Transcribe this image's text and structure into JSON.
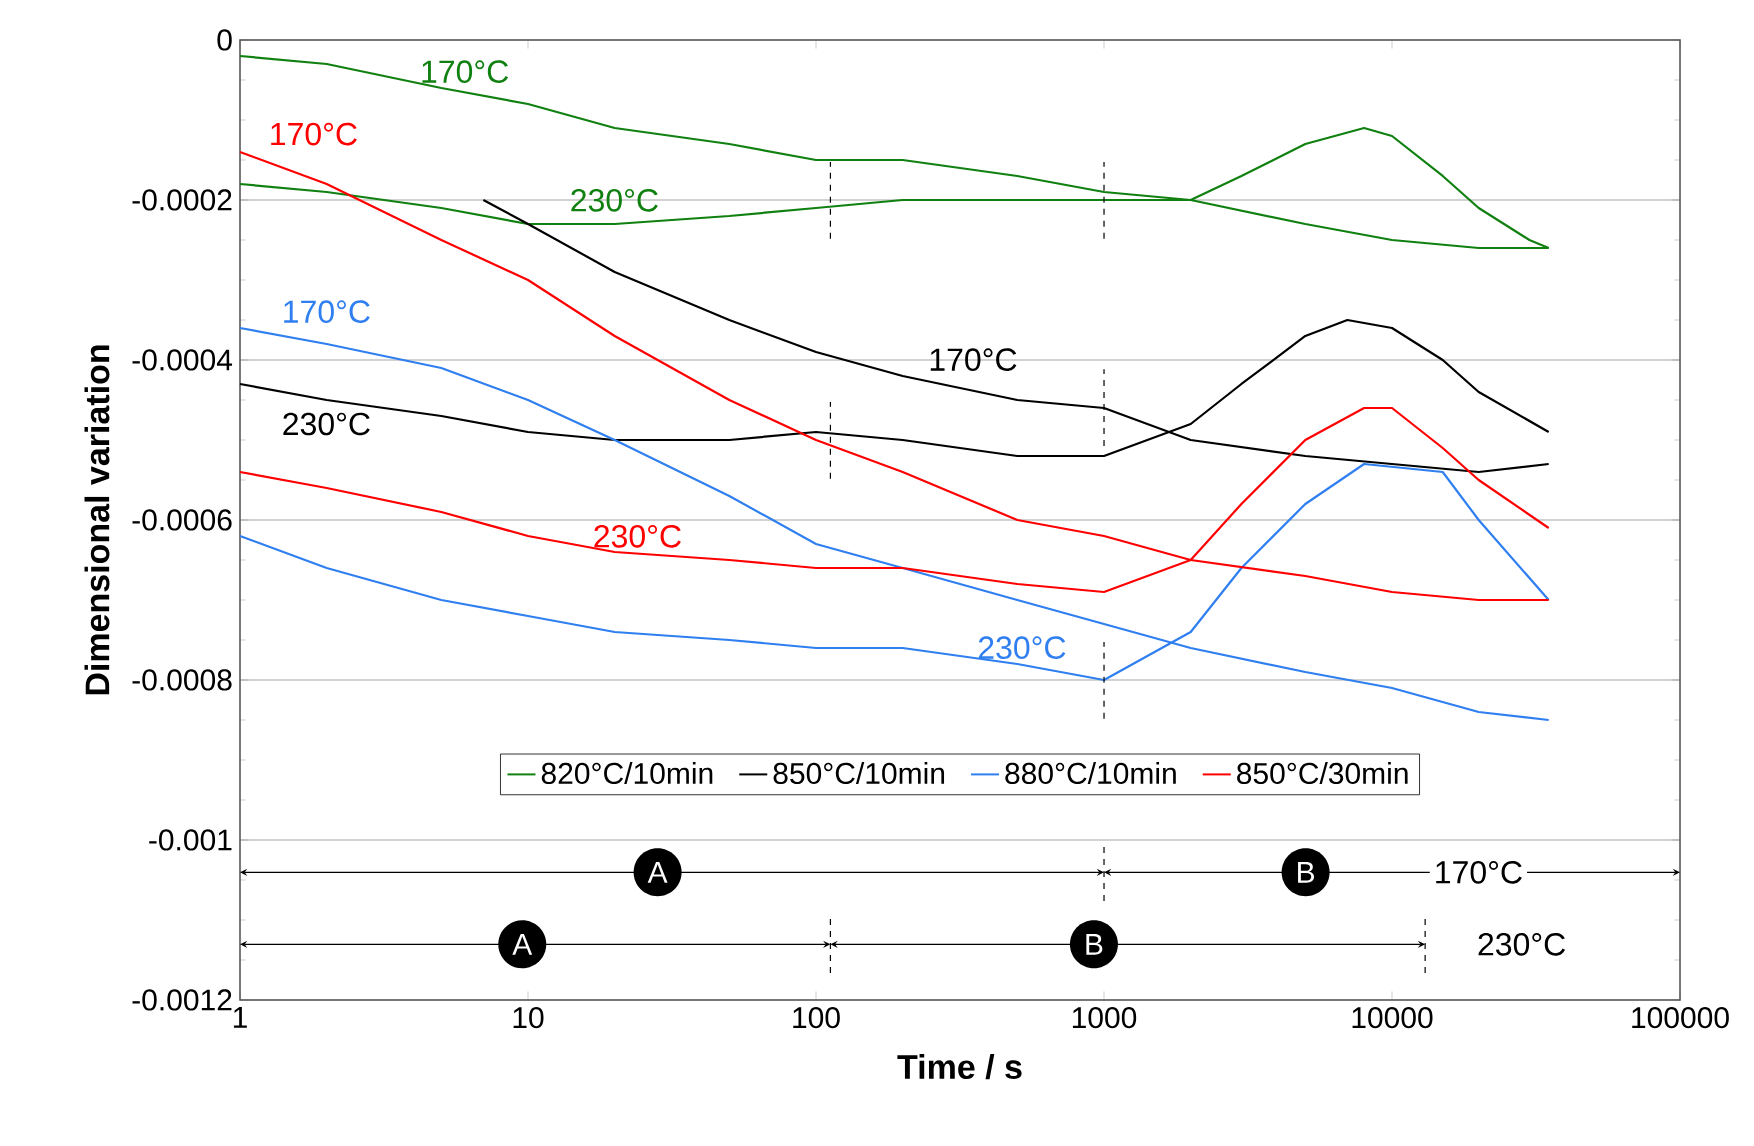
{
  "chart_data": {
    "type": "line",
    "xlabel": "Time / s",
    "ylabel": "Dimensional variation",
    "log": "x",
    "xlim": [
      1,
      100000
    ],
    "ylim": [
      -0.0012,
      0
    ],
    "xticks": [
      1,
      10,
      100,
      1000,
      10000,
      100000
    ],
    "yticks": [
      0,
      -0.0002,
      -0.0004,
      -0.0006,
      -0.0008,
      -0.001,
      -0.0012
    ],
    "grid": "y",
    "legend": "bottom",
    "series": [
      {
        "name": "820°C/10min",
        "color": "#108010",
        "x": [
          1,
          2,
          5,
          10,
          20,
          50,
          100,
          200,
          500,
          1000,
          2000,
          5000,
          10000,
          20000,
          35000
        ],
        "values": [
          -2e-05,
          -3e-05,
          -6e-05,
          -8e-05,
          -0.00011,
          -0.00013,
          -0.00015,
          -0.00015,
          -0.00017,
          -0.00019,
          -0.0002,
          -0.00023,
          -0.00025,
          -0.00026,
          -0.00026
        ]
      },
      {
        "color": "#108010",
        "x": [
          1,
          2,
          5,
          10,
          20,
          50,
          100,
          200,
          500,
          1000,
          2000,
          3000,
          5000,
          8000,
          10000,
          15000,
          20000,
          30000,
          35000
        ],
        "values": [
          -0.00018,
          -0.00019,
          -0.00021,
          -0.00023,
          -0.00023,
          -0.00022,
          -0.00021,
          -0.0002,
          -0.0002,
          -0.0002,
          -0.0002,
          -0.00017,
          -0.00013,
          -0.00011,
          -0.00012,
          -0.00017,
          -0.00021,
          -0.00025,
          -0.00026
        ]
      },
      {
        "name": "850°C/10min",
        "color": "#000000",
        "x": [
          7,
          10,
          20,
          50,
          100,
          200,
          500,
          1000,
          2000,
          5000,
          10000,
          20000,
          35000
        ],
        "values": [
          -0.0002,
          -0.00023,
          -0.00029,
          -0.00035,
          -0.00039,
          -0.00042,
          -0.00045,
          -0.00046,
          -0.0005,
          -0.00052,
          -0.00053,
          -0.00054,
          -0.00053
        ]
      },
      {
        "color": "#000000",
        "x": [
          1,
          2,
          5,
          10,
          20,
          50,
          100,
          200,
          500,
          1000,
          2000,
          3000,
          5000,
          7000,
          10000,
          15000,
          20000,
          35000
        ],
        "values": [
          -0.00043,
          -0.00045,
          -0.00047,
          -0.00049,
          -0.0005,
          -0.0005,
          -0.00049,
          -0.0005,
          -0.00052,
          -0.00052,
          -0.00048,
          -0.00043,
          -0.00037,
          -0.00035,
          -0.00036,
          -0.0004,
          -0.00044,
          -0.00049
        ]
      },
      {
        "name": "880°C/10min",
        "color": "#2f7ff0",
        "x": [
          1,
          2,
          5,
          10,
          20,
          50,
          100,
          200,
          500,
          1000,
          2000,
          5000,
          10000,
          20000,
          35000
        ],
        "values": [
          -0.00036,
          -0.00038,
          -0.00041,
          -0.00045,
          -0.0005,
          -0.00057,
          -0.00063,
          -0.00066,
          -0.0007,
          -0.00073,
          -0.00076,
          -0.00079,
          -0.00081,
          -0.00084,
          -0.00085
        ]
      },
      {
        "color": "#2f7ff0",
        "x": [
          1,
          2,
          5,
          10,
          20,
          50,
          100,
          200,
          500,
          1000,
          2000,
          3000,
          5000,
          8000,
          15000,
          20000,
          35000
        ],
        "values": [
          -0.00062,
          -0.00066,
          -0.0007,
          -0.00072,
          -0.00074,
          -0.00075,
          -0.00076,
          -0.00076,
          -0.00078,
          -0.0008,
          -0.00074,
          -0.00066,
          -0.00058,
          -0.00053,
          -0.00054,
          -0.0006,
          -0.0007
        ]
      },
      {
        "name": "850°C/30min",
        "color": "#ff0000",
        "x": [
          1,
          2,
          5,
          10,
          20,
          50,
          100,
          200,
          500,
          1000,
          2000,
          5000,
          10000,
          20000,
          35000
        ],
        "values": [
          -0.00014,
          -0.00018,
          -0.00025,
          -0.0003,
          -0.00037,
          -0.00045,
          -0.0005,
          -0.00054,
          -0.0006,
          -0.00062,
          -0.00065,
          -0.00067,
          -0.00069,
          -0.0007,
          -0.0007
        ]
      },
      {
        "color": "#ff0000",
        "x": [
          1,
          2,
          5,
          10,
          20,
          50,
          100,
          200,
          500,
          1000,
          2000,
          3000,
          5000,
          8000,
          10000,
          15000,
          20000,
          35000
        ],
        "values": [
          -0.00054,
          -0.00056,
          -0.00059,
          -0.00062,
          -0.00064,
          -0.00065,
          -0.00066,
          -0.00066,
          -0.00068,
          -0.00069,
          -0.00065,
          -0.00058,
          -0.0005,
          -0.00046,
          -0.00046,
          -0.00051,
          -0.00055,
          -0.00061
        ]
      }
    ],
    "annotations": [
      "170°C",
      "230°C",
      "170°C",
      "230°C",
      "170°C",
      "230°C",
      "230°C",
      "170°C",
      "A",
      "B",
      "170°C",
      "A",
      "B",
      "230°C"
    ]
  }
}
